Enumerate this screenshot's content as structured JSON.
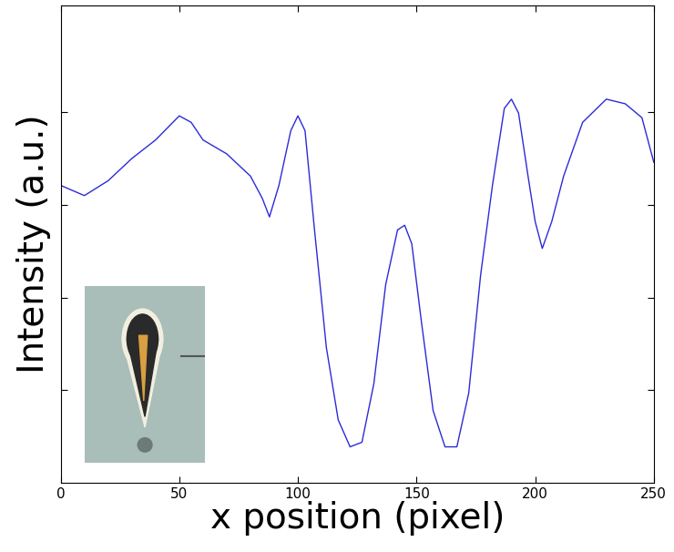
{
  "chart_data": {
    "type": "line",
    "x_label": "x position (pixel)",
    "y_label": "Intensity (a.u.)",
    "x": [
      0,
      10,
      20,
      30,
      40,
      50,
      55,
      60,
      70,
      80,
      85,
      88,
      92,
      97,
      100,
      103,
      107,
      112,
      117,
      122,
      127,
      132,
      137,
      142,
      145,
      148,
      152,
      157,
      162,
      167,
      172,
      177,
      182,
      187,
      190,
      193,
      197,
      200,
      203,
      207,
      212,
      220,
      230,
      238,
      245,
      250
    ],
    "values": [
      3.21,
      3.1,
      3.26,
      3.5,
      3.7,
      3.96,
      3.89,
      3.7,
      3.55,
      3.31,
      3.07,
      2.87,
      3.21,
      3.8,
      3.96,
      3.8,
      2.73,
      1.46,
      0.68,
      0.39,
      0.44,
      1.07,
      2.14,
      2.73,
      2.78,
      2.58,
      1.75,
      0.78,
      0.39,
      0.39,
      0.97,
      2.24,
      3.21,
      4.04,
      4.14,
      3.99,
      3.31,
      2.82,
      2.53,
      2.82,
      3.31,
      3.89,
      4.14,
      4.09,
      3.94,
      3.46
    ],
    "color": "#2b2bd9",
    "xlim": [
      0,
      250
    ],
    "xticks": [
      0,
      50,
      100,
      150,
      200,
      250
    ],
    "ylim": [
      0,
      5.15
    ],
    "yticks": [
      1,
      2,
      3,
      4
    ],
    "tick_labels": "x"
  }
}
